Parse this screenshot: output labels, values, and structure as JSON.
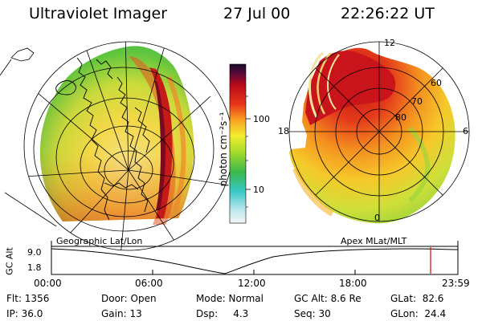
{
  "header": {
    "title": "Ultraviolet Imager",
    "date": "27 Jul 00",
    "time": "22:26:22 UT"
  },
  "colorbar": {
    "unit_label": "photon cm⁻²s⁻¹",
    "ticks": [
      "100",
      "10"
    ]
  },
  "left_panel": {
    "caption": "Geographic Lat/Lon"
  },
  "right_panel": {
    "caption": "Apex MLat/MLT",
    "mlt_labels": {
      "top": "12",
      "left": "18",
      "right": "6",
      "bottom": "0"
    },
    "lat_labels": [
      "60",
      "70",
      "80"
    ]
  },
  "altitude_plot": {
    "axis_title": "GC Alt",
    "yticks": [
      "9.0",
      "1.8"
    ],
    "time_ticks": [
      "00:00",
      "06:00",
      "12:00",
      "18:00",
      "23:59"
    ],
    "current_time_marker": "22:26:22"
  },
  "info": {
    "flt": "Flt: 1356",
    "ip": "IP: 36.0",
    "door": "Door: Open",
    "gain": "Gain: 13",
    "mode": "Mode: Normal",
    "dsp": "Dsp:     4.3",
    "gcalt": "GC Alt: 8.6 Re",
    "seq": "Seq: 30",
    "glat": "GLat:  82.6",
    "glon": "GLon:  24.4"
  }
}
